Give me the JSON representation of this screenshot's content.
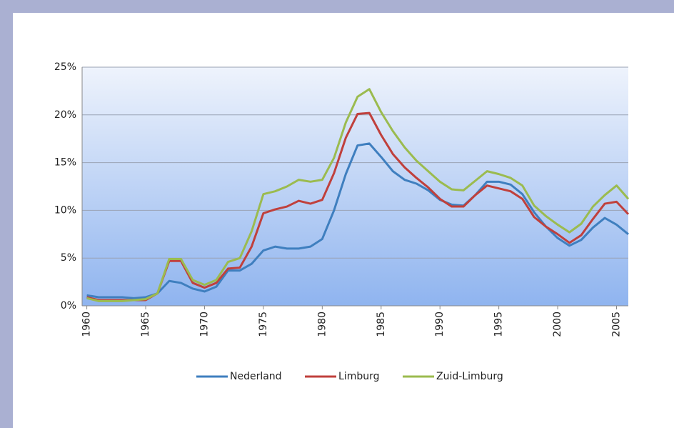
{
  "chart_data": {
    "type": "line",
    "x": [
      1960,
      1961,
      1962,
      1963,
      1964,
      1965,
      1966,
      1967,
      1968,
      1969,
      1970,
      1971,
      1972,
      1973,
      1974,
      1975,
      1976,
      1977,
      1978,
      1979,
      1980,
      1981,
      1982,
      1983,
      1984,
      1985,
      1986,
      1987,
      1988,
      1989,
      1990,
      1991,
      1992,
      1993,
      1994,
      1995,
      1996,
      1997,
      1998,
      1999,
      2000,
      2001,
      2002,
      2003,
      2004,
      2005,
      2006
    ],
    "series": [
      {
        "name": "Nederland",
        "color": "#3f7fbf",
        "values": [
          1.1,
          0.9,
          0.9,
          0.9,
          0.8,
          0.9,
          1.3,
          2.6,
          2.4,
          1.8,
          1.5,
          2.0,
          3.7,
          3.7,
          4.4,
          5.8,
          6.2,
          6.0,
          6.0,
          6.2,
          7.0,
          10.0,
          13.8,
          16.8,
          17.0,
          15.6,
          14.1,
          13.2,
          12.8,
          12.1,
          11.1,
          10.6,
          10.5,
          11.6,
          13.0,
          13.0,
          12.7,
          11.7,
          9.8,
          8.3,
          7.1,
          6.3,
          6.9,
          8.2,
          9.2,
          8.5,
          7.5
        ]
      },
      {
        "name": "Limburg",
        "color": "#c0403c",
        "values": [
          0.9,
          0.6,
          0.6,
          0.6,
          0.6,
          0.6,
          1.3,
          4.7,
          4.7,
          2.4,
          1.9,
          2.4,
          3.9,
          4.0,
          6.2,
          9.7,
          10.1,
          10.4,
          11.0,
          10.7,
          11.1,
          13.9,
          17.6,
          20.1,
          20.2,
          17.9,
          15.9,
          14.5,
          13.4,
          12.4,
          11.2,
          10.4,
          10.4,
          11.6,
          12.6,
          12.3,
          12.0,
          11.2,
          9.3,
          8.3,
          7.5,
          6.6,
          7.4,
          9.1,
          10.7,
          10.9,
          9.6
        ]
      },
      {
        "name": "Zuid-Limburg",
        "color": "#9bbb4f",
        "values": [
          0.8,
          0.5,
          0.5,
          0.5,
          0.6,
          0.7,
          1.3,
          4.9,
          4.9,
          2.7,
          2.2,
          2.7,
          4.6,
          5.0,
          7.8,
          11.7,
          12.0,
          12.5,
          13.2,
          13.0,
          13.2,
          15.5,
          19.2,
          21.9,
          22.7,
          20.3,
          18.3,
          16.6,
          15.2,
          14.1,
          13.0,
          12.2,
          12.1,
          13.1,
          14.1,
          13.8,
          13.4,
          12.6,
          10.5,
          9.4,
          8.5,
          7.7,
          8.6,
          10.4,
          11.6,
          12.6,
          11.2
        ]
      }
    ],
    "xlim": [
      1959.6,
      2006
    ],
    "xticks": [
      1960,
      1965,
      1970,
      1975,
      1980,
      1985,
      1990,
      1995,
      2000,
      2005
    ],
    "ylim": [
      0,
      25
    ],
    "yticks": [
      {
        "value": 0,
        "label": "0%"
      },
      {
        "value": 5,
        "label": "5%"
      },
      {
        "value": 10,
        "label": "10%"
      },
      {
        "value": 15,
        "label": "15%"
      },
      {
        "value": 20,
        "label": "20%"
      },
      {
        "value": 25,
        "label": "25%"
      }
    ],
    "grid": true,
    "legend": "bottom"
  }
}
